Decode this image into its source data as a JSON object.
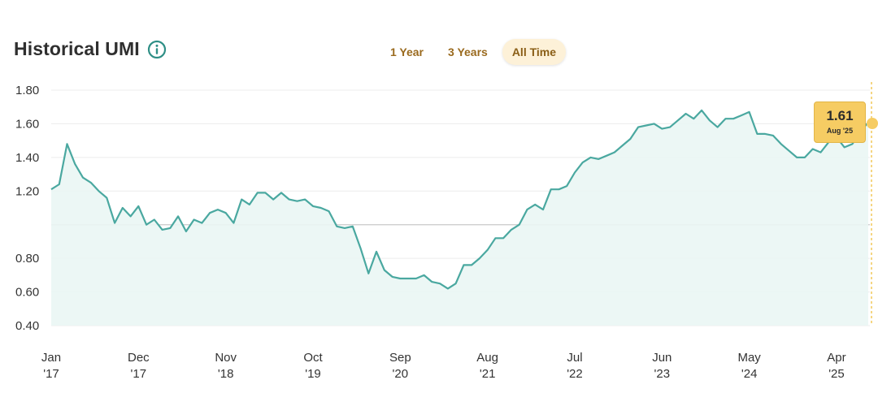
{
  "header": {
    "title": "Historical UMI",
    "info_icon": "info-circle-icon"
  },
  "range_tabs": [
    {
      "label": "1 Year",
      "active": false
    },
    {
      "label": "3 Years",
      "active": false
    },
    {
      "label": "All Time",
      "active": true
    }
  ],
  "colors": {
    "line": "#4aa8a0",
    "fill": "#eaf6f4",
    "accent": "#f6cc63",
    "tab_text": "#9a6a1e"
  },
  "tooltip": {
    "value": "1.61",
    "date": "Aug '25"
  },
  "chart_data": {
    "type": "area",
    "title": "Historical UMI",
    "ylim": [
      0.4,
      1.8
    ],
    "yticks": [
      {
        "value": 1.8,
        "label": "1.80"
      },
      {
        "value": 1.6,
        "label": "1.60"
      },
      {
        "value": 1.4,
        "label": "1.40"
      },
      {
        "value": 1.2,
        "label": "1.20"
      },
      {
        "value": 1.0,
        "label": ""
      },
      {
        "value": 0.8,
        "label": "0.80"
      },
      {
        "value": 0.6,
        "label": "0.60"
      },
      {
        "value": 0.4,
        "label": "0.40"
      }
    ],
    "xticks": [
      {
        "x": "2017-01",
        "month": "Jan",
        "year": "'17"
      },
      {
        "x": "2017-12",
        "month": "Dec",
        "year": "'17"
      },
      {
        "x": "2018-11",
        "month": "Nov",
        "year": "'18"
      },
      {
        "x": "2019-10",
        "month": "Oct",
        "year": "'19"
      },
      {
        "x": "2020-09",
        "month": "Sep",
        "year": "'20"
      },
      {
        "x": "2021-08",
        "month": "Aug",
        "year": "'21"
      },
      {
        "x": "2022-07",
        "month": "Jul",
        "year": "'22"
      },
      {
        "x": "2023-06",
        "month": "Jun",
        "year": "'23"
      },
      {
        "x": "2024-05",
        "month": "May",
        "year": "'24"
      },
      {
        "x": "2025-04",
        "month": "Apr",
        "year": "'25"
      }
    ],
    "reference_line": 1.0,
    "grid": true,
    "series": [
      {
        "x": [
          "2017-01",
          "2017-02",
          "2017-03",
          "2017-04",
          "2017-05",
          "2017-06",
          "2017-07",
          "2017-08",
          "2017-09",
          "2017-10",
          "2017-11",
          "2017-12",
          "2018-01",
          "2018-02",
          "2018-03",
          "2018-04",
          "2018-05",
          "2018-06",
          "2018-07",
          "2018-08",
          "2018-09",
          "2018-10",
          "2018-11",
          "2018-12",
          "2019-01",
          "2019-02",
          "2019-03",
          "2019-04",
          "2019-05",
          "2019-06",
          "2019-07",
          "2019-08",
          "2019-09",
          "2019-10",
          "2019-11",
          "2019-12",
          "2020-01",
          "2020-02",
          "2020-03",
          "2020-04",
          "2020-05",
          "2020-06",
          "2020-07",
          "2020-08",
          "2020-09",
          "2020-10",
          "2020-11",
          "2020-12",
          "2021-01",
          "2021-02",
          "2021-03",
          "2021-04",
          "2021-05",
          "2021-06",
          "2021-07",
          "2021-08",
          "2021-09",
          "2021-10",
          "2021-11",
          "2021-12",
          "2022-01",
          "2022-02",
          "2022-03",
          "2022-04",
          "2022-05",
          "2022-06",
          "2022-07",
          "2022-08",
          "2022-09",
          "2022-10",
          "2022-11",
          "2022-12",
          "2023-01",
          "2023-02",
          "2023-03",
          "2023-04",
          "2023-05",
          "2023-06",
          "2023-07",
          "2023-08",
          "2023-09",
          "2023-10",
          "2023-11",
          "2023-12",
          "2024-01",
          "2024-02",
          "2024-03",
          "2024-04",
          "2024-05",
          "2024-06",
          "2024-07",
          "2024-08",
          "2024-09",
          "2024-10",
          "2024-11",
          "2024-12",
          "2025-01",
          "2025-02",
          "2025-03",
          "2025-04",
          "2025-05",
          "2025-06",
          "2025-07",
          "2025-08"
        ],
        "values": [
          1.21,
          1.24,
          1.48,
          1.36,
          1.28,
          1.25,
          1.2,
          1.16,
          1.01,
          1.1,
          1.05,
          1.11,
          1.0,
          1.03,
          0.97,
          0.98,
          1.05,
          0.96,
          1.03,
          1.01,
          1.07,
          1.09,
          1.07,
          1.01,
          1.15,
          1.12,
          1.19,
          1.19,
          1.15,
          1.19,
          1.15,
          1.14,
          1.15,
          1.11,
          1.1,
          1.08,
          0.99,
          0.98,
          0.99,
          0.86,
          0.71,
          0.84,
          0.73,
          0.69,
          0.68,
          0.68,
          0.68,
          0.7,
          0.66,
          0.65,
          0.62,
          0.65,
          0.76,
          0.76,
          0.8,
          0.85,
          0.92,
          0.92,
          0.97,
          1.0,
          1.09,
          1.12,
          1.09,
          1.21,
          1.21,
          1.23,
          1.31,
          1.37,
          1.4,
          1.39,
          1.41,
          1.43,
          1.47,
          1.51,
          1.58,
          1.59,
          1.6,
          1.57,
          1.58,
          1.62,
          1.66,
          1.63,
          1.68,
          1.62,
          1.58,
          1.63,
          1.63,
          1.65,
          1.67,
          1.54,
          1.54,
          1.53,
          1.48,
          1.44,
          1.4,
          1.4,
          1.45,
          1.43,
          1.49,
          1.52,
          1.46,
          1.48,
          1.55,
          1.61
        ]
      }
    ]
  }
}
